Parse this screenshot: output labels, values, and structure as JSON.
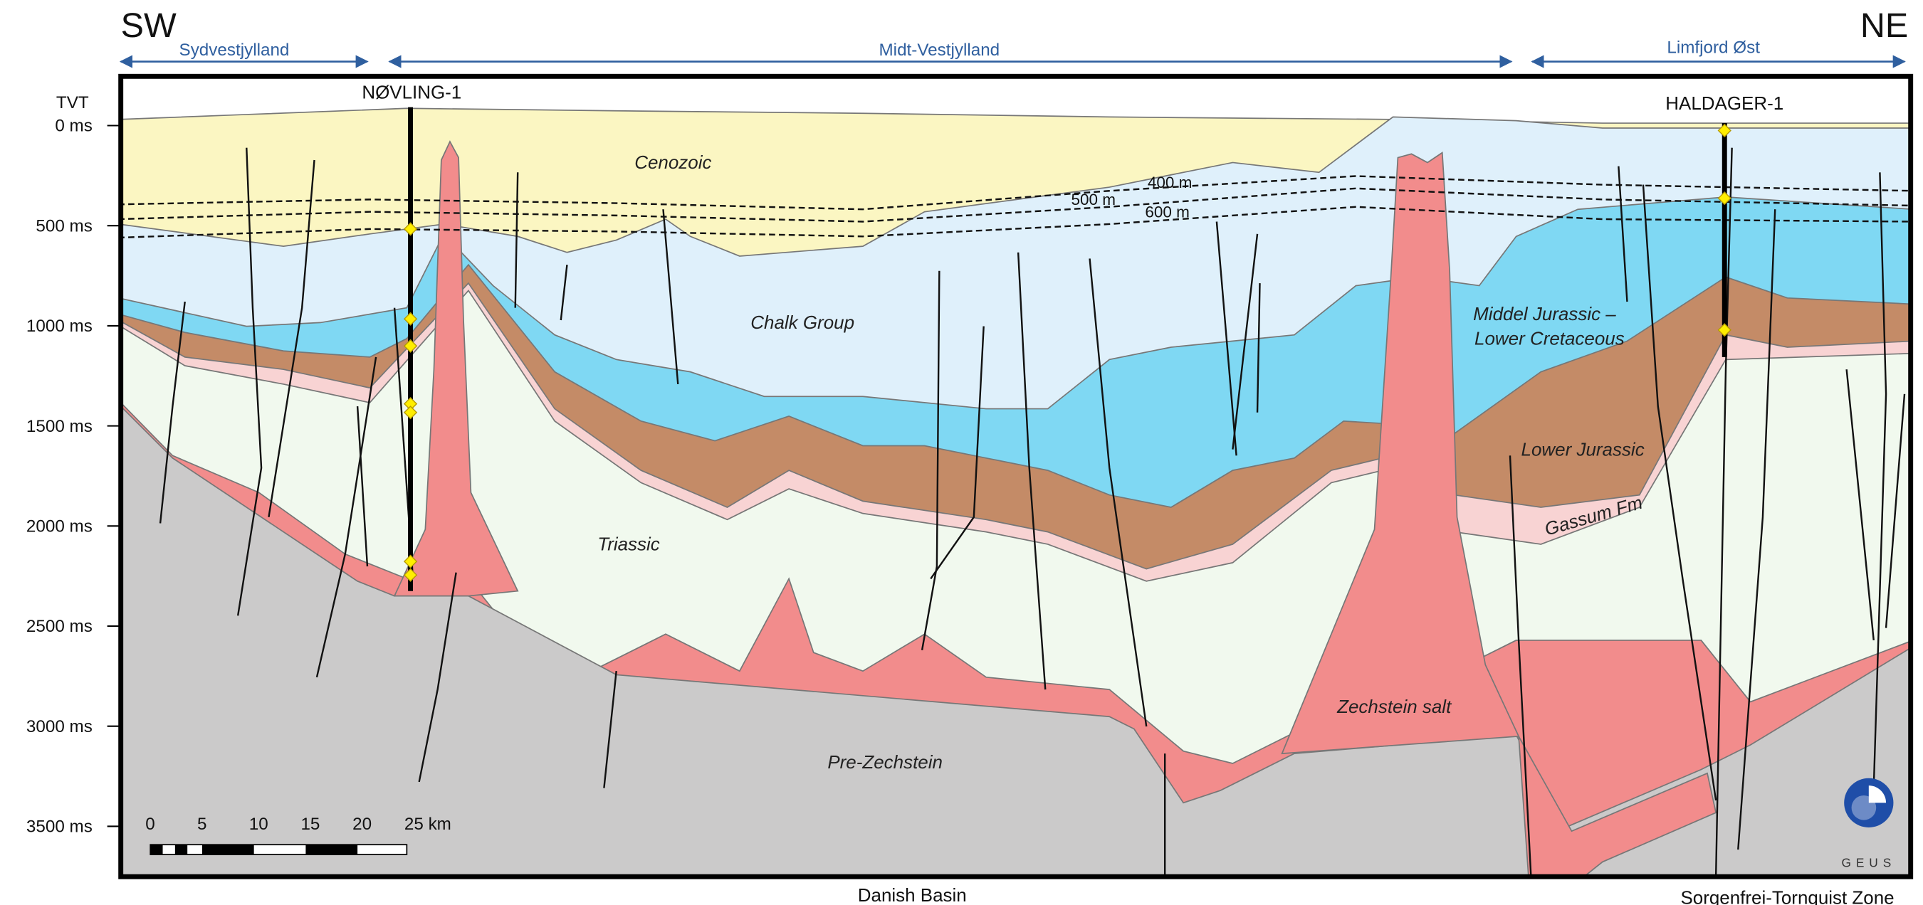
{
  "header": {
    "left": "SW",
    "right": "NE"
  },
  "regions": [
    "Sydvestjylland",
    "Midt-Vestjylland",
    "Limfjord Øst"
  ],
  "axis": {
    "title": "TVT",
    "labels": [
      "0 ms",
      "500 ms",
      "1000 ms",
      "1500 ms",
      "2000 ms",
      "2500 ms",
      "3000 ms",
      "3500 ms"
    ]
  },
  "wells": [
    "NØVLING-1",
    "HALDAGER-1"
  ],
  "layers": [
    "Cenozoic",
    "Chalk Group",
    "Middel Jurassic –",
    "Lower Cretaceous",
    "Lower Jurassic",
    "Gassum Fm",
    "Triassic",
    "Zechstein salt",
    "Pre-Zechstein"
  ],
  "depth_lines": [
    "400 m",
    "500 m",
    "600 m"
  ],
  "scale_bar": {
    "labels": [
      "0",
      "5",
      "10",
      "15",
      "20",
      "25 km"
    ]
  },
  "logo": "GEUS",
  "footer": {
    "left": "Danish Basin",
    "right": "Sorgenfrei-Tornquist Zone"
  }
}
